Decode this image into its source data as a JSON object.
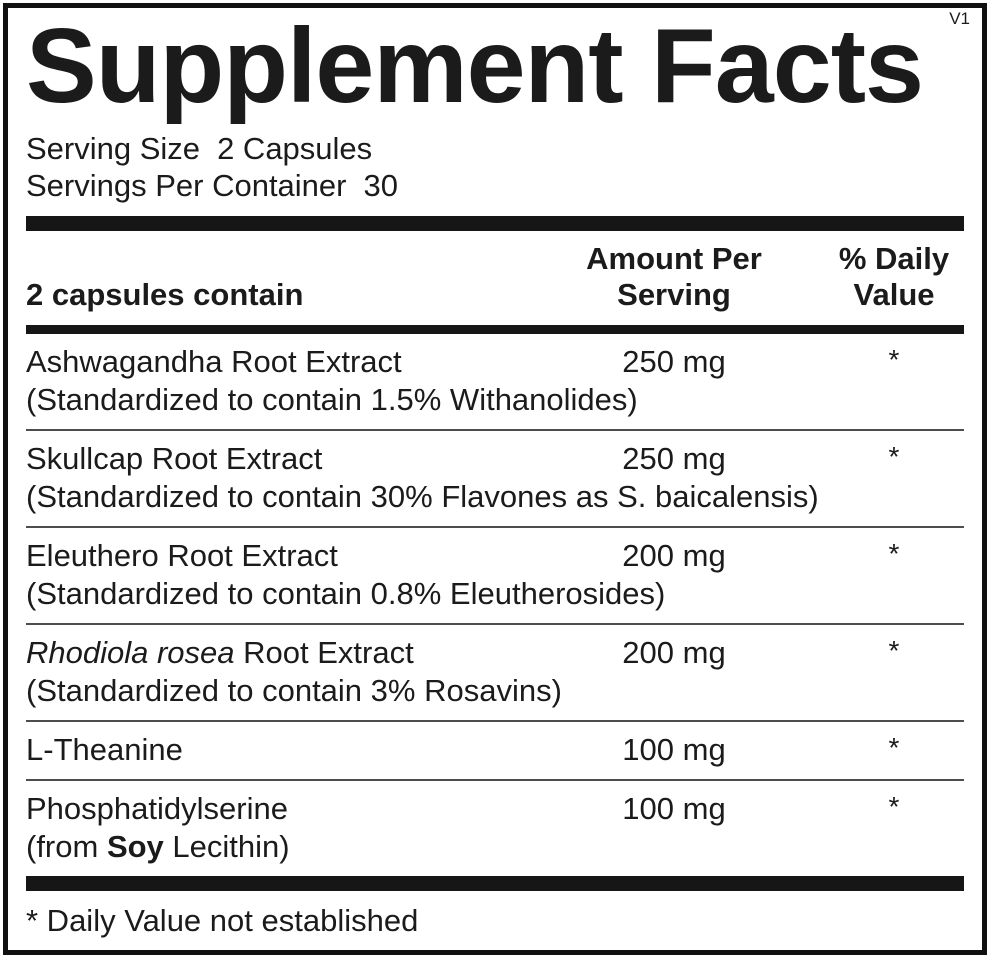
{
  "version_tag": "V1",
  "title": "Supplement Facts",
  "serving_info": {
    "serving_size_label": "Serving Size",
    "serving_size_value": "2 Capsules",
    "servings_per_container_label": "Servings Per Container",
    "servings_per_container_value": "30"
  },
  "table": {
    "header": {
      "contains_label": "2 capsules contain",
      "amount_line1": "Amount Per",
      "amount_line2": "Serving",
      "dv_line1": "% Daily",
      "dv_line2": "Value"
    },
    "rows": [
      {
        "name": "Ashwagandha Root Extract",
        "amount": "250 mg",
        "daily_value": "*",
        "note": "(Standardized to contain 1.5% Withanolides)"
      },
      {
        "name": "Skullcap Root Extract",
        "amount": "250 mg",
        "daily_value": "*",
        "note": "(Standardized to contain 30% Flavones as S. baicalensis)"
      },
      {
        "name": "Eleuthero Root Extract",
        "amount": "200 mg",
        "daily_value": "*",
        "note": "(Standardized to contain 0.8% Eleutherosides)"
      },
      {
        "name_italic": "Rhodiola rosea",
        "name": " Root Extract",
        "amount": "200 mg",
        "daily_value": "*",
        "note": "(Standardized to contain 3% Rosavins)"
      },
      {
        "name": "L-Theanine",
        "amount": "100 mg",
        "daily_value": "*"
      },
      {
        "name": "Phosphatidylserine",
        "amount": "100 mg",
        "daily_value": "*",
        "note_pre": "(from ",
        "note_bold": "Soy",
        "note_post": " Lecithin)"
      }
    ]
  },
  "footnote": "* Daily Value not established"
}
